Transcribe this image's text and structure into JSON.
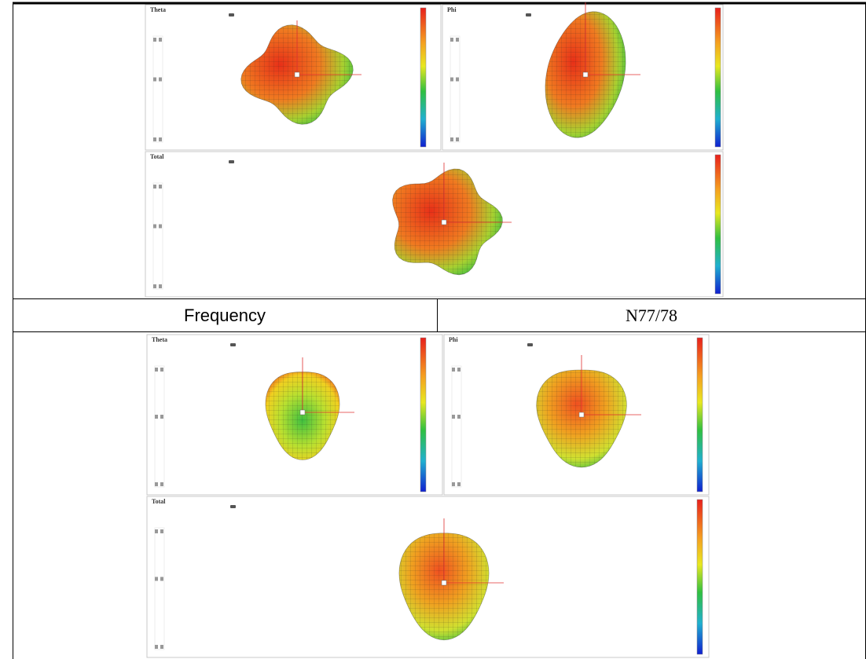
{
  "figures": [
    {
      "panels": [
        {
          "title": "Theta"
        },
        {
          "title": "Phi"
        },
        {
          "title": "Total"
        }
      ]
    },
    {
      "panels": [
        {
          "title": "Theta"
        },
        {
          "title": "Phi"
        },
        {
          "title": "Total"
        }
      ]
    }
  ],
  "table": {
    "rows": [
      [
        "Frequency",
        "N77/78"
      ]
    ]
  }
}
